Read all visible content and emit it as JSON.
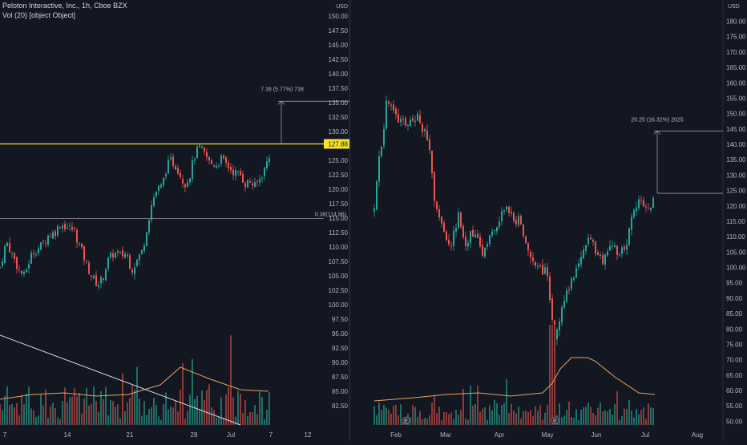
{
  "header": {
    "title": "Peloton Interactive, Inc., 1h, Cboe BZX",
    "indicator": "Vol (20) [object Object]"
  },
  "colors": {
    "background": "#131722",
    "up": "#26a69a",
    "down": "#ef5350",
    "vol_up": "#1f6f67",
    "vol_down": "#8c3a3a",
    "ma": "#e8a35c",
    "axis_text": "#b2b5be",
    "price_line": "#f5e32a"
  },
  "left_chart": {
    "currency": "USD",
    "price_labels": [
      "150.00",
      "147.50",
      "145.00",
      "142.50",
      "140.00",
      "137.50",
      "135.00",
      "132.50",
      "130.00",
      "127.88",
      "125.00",
      "122.50",
      "120.00",
      "117.50",
      "115.00",
      "112.50",
      "110.00",
      "107.50",
      "105.00",
      "102.50",
      "100.00",
      "97.50",
      "95.00",
      "92.50",
      "90.00",
      "87.50",
      "85.00",
      "82.50"
    ],
    "current_price": "127.88",
    "date_labels": [
      "7",
      "14",
      "21",
      "28",
      "Jul",
      "7",
      "12"
    ],
    "annotations": {
      "measure": "7.38 (5.77%) 738",
      "level": "0.38(114.96)"
    }
  },
  "right_chart": {
    "currency": "USD",
    "price_labels": [
      "180.00",
      "175.00",
      "170.00",
      "165.00",
      "160.00",
      "155.00",
      "150.00",
      "145.00",
      "140.00",
      "135.00",
      "130.00",
      "125.00",
      "120.00",
      "115.00",
      "110.00",
      "105.00",
      "100.00",
      "95.00",
      "90.00",
      "85.00",
      "80.00",
      "75.00",
      "70.00",
      "65.00",
      "60.00",
      "55.00",
      "50.00"
    ],
    "date_labels": [
      "Feb",
      "Mar",
      "Apr",
      "May",
      "Jun",
      "Jul",
      "Aug"
    ],
    "annotations": {
      "measure": "20.25 (16.32%) 2025",
      "earnings": [
        "E",
        "E"
      ]
    }
  },
  "chart_data": [
    {
      "type": "candlestick",
      "title": "Peloton Interactive, Inc., 1h, Cboe BZX",
      "ylabel": "USD",
      "ylim": [
        81.0,
        151.0
      ],
      "x_ticks": [
        "7",
        "14",
        "21",
        "28",
        "Jul",
        "7",
        "12"
      ],
      "current_price": 127.88,
      "horizontal_levels": [
        127.88,
        114.96
      ],
      "measure": {
        "from": 127.88,
        "to": 135.26,
        "label": "7.38 (5.77%) 738"
      },
      "anchors": [
        [
          0,
          106.5
        ],
        [
          8,
          111
        ],
        [
          16,
          108.5
        ],
        [
          24,
          106
        ],
        [
          30,
          105
        ],
        [
          40,
          109
        ],
        [
          50,
          110
        ],
        [
          60,
          112
        ],
        [
          68,
          112.5
        ],
        [
          75,
          114
        ],
        [
          84,
          113.5
        ],
        [
          92,
          113
        ],
        [
          100,
          110
        ],
        [
          108,
          107
        ],
        [
          116,
          104.5
        ],
        [
          122,
          103.5
        ],
        [
          128,
          104.5
        ],
        [
          134,
          107.5
        ],
        [
          142,
          109
        ],
        [
          150,
          108.5
        ],
        [
          158,
          109
        ],
        [
          164,
          106
        ],
        [
          170,
          107.5
        ],
        [
          178,
          109.5
        ],
        [
          184,
          114
        ],
        [
          190,
          118
        ],
        [
          196,
          120
        ],
        [
          202,
          120.5
        ],
        [
          208,
          124
        ],
        [
          214,
          125
        ],
        [
          222,
          123.5
        ],
        [
          230,
          121
        ],
        [
          236,
          122
        ],
        [
          242,
          125.5
        ],
        [
          248,
          127.3
        ],
        [
          256,
          126
        ],
        [
          262,
          124.5
        ],
        [
          270,
          124.3
        ],
        [
          276,
          125.3
        ],
        [
          284,
          124
        ],
        [
          292,
          123
        ],
        [
          300,
          122.5
        ],
        [
          306,
          121
        ],
        [
          312,
          121.3
        ],
        [
          318,
          120.5
        ],
        [
          324,
          121.8
        ],
        [
          330,
          123.5
        ],
        [
          336,
          126
        ],
        [
          339,
          128.5
        ]
      ],
      "volume_ma": [
        [
          0,
          32
        ],
        [
          40,
          38
        ],
        [
          80,
          40
        ],
        [
          120,
          36
        ],
        [
          160,
          38
        ],
        [
          200,
          50
        ],
        [
          225,
          72
        ],
        [
          260,
          58
        ],
        [
          300,
          44
        ],
        [
          335,
          42
        ]
      ]
    },
    {
      "type": "candlestick",
      "ylabel": "USD",
      "ylim": [
        48.8,
        181.7
      ],
      "x_ticks": [
        "Feb",
        "Mar",
        "Apr",
        "May",
        "Jun",
        "Jul",
        "Aug"
      ],
      "measure": {
        "from": 124.1,
        "to": 144.35,
        "label": "20.25 (16.32%) 2025"
      },
      "anchors": [
        [
          30,
          118
        ],
        [
          35,
          135
        ],
        [
          40,
          140
        ],
        [
          45,
          155
        ],
        [
          50,
          153
        ],
        [
          55,
          150
        ],
        [
          60,
          148
        ],
        [
          65,
          150
        ],
        [
          70,
          145
        ],
        [
          75,
          148
        ],
        [
          80,
          146
        ],
        [
          85,
          150
        ],
        [
          90,
          145
        ],
        [
          95,
          143
        ],
        [
          100,
          138
        ],
        [
          105,
          122
        ],
        [
          110,
          118
        ],
        [
          115,
          114
        ],
        [
          120,
          110
        ],
        [
          125,
          107
        ],
        [
          130,
          112
        ],
        [
          135,
          117
        ],
        [
          140,
          110
        ],
        [
          145,
          106
        ],
        [
          150,
          112
        ],
        [
          155,
          110
        ],
        [
          160,
          108
        ],
        [
          165,
          104
        ],
        [
          170,
          108
        ],
        [
          175,
          110
        ],
        [
          180,
          112
        ],
        [
          185,
          115
        ],
        [
          190,
          118
        ],
        [
          195,
          120
        ],
        [
          200,
          118
        ],
        [
          205,
          114
        ],
        [
          210,
          116
        ],
        [
          215,
          112
        ],
        [
          220,
          106
        ],
        [
          225,
          104
        ],
        [
          230,
          100
        ],
        [
          235,
          102
        ],
        [
          240,
          98
        ],
        [
          245,
          100
        ],
        [
          250,
          88
        ],
        [
          255,
          75
        ],
        [
          260,
          82
        ],
        [
          265,
          88
        ],
        [
          270,
          92
        ],
        [
          275,
          95
        ],
        [
          280,
          98
        ],
        [
          285,
          102
        ],
        [
          290,
          104
        ],
        [
          295,
          108
        ],
        [
          300,
          110
        ],
        [
          305,
          106
        ],
        [
          310,
          104
        ],
        [
          315,
          102
        ],
        [
          320,
          106
        ],
        [
          325,
          108
        ],
        [
          330,
          106
        ],
        [
          335,
          104
        ],
        [
          340,
          106
        ],
        [
          345,
          108
        ],
        [
          350,
          115
        ],
        [
          355,
          118
        ],
        [
          360,
          122
        ],
        [
          365,
          121
        ],
        [
          370,
          120
        ],
        [
          375,
          119
        ],
        [
          380,
          124
        ]
      ],
      "volume_ma": [
        [
          30,
          30
        ],
        [
          80,
          34
        ],
        [
          120,
          38
        ],
        [
          160,
          40
        ],
        [
          200,
          36
        ],
        [
          240,
          40
        ],
        [
          252,
          52
        ],
        [
          262,
          70
        ],
        [
          276,
          84
        ],
        [
          296,
          84
        ],
        [
          305,
          80
        ],
        [
          330,
          60
        ],
        [
          360,
          40
        ],
        [
          380,
          38
        ]
      ]
    }
  ]
}
